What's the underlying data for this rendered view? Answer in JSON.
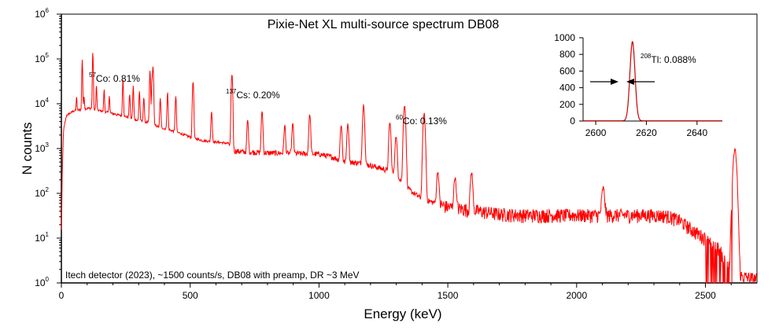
{
  "chart_data": [
    {
      "type": "line",
      "title": "Pixie-Net XL multi-source spectrum DB08",
      "xlabel": "Energy (keV)",
      "ylabel": "N counts",
      "yscale": "log",
      "xlim": [
        0,
        2700
      ],
      "ylim": [
        1,
        1000000
      ],
      "x_ticks": [
        0,
        500,
        1000,
        1500,
        2000,
        2500
      ],
      "y_ticks": [
        {
          "value": 1,
          "base": "10",
          "exp": "0"
        },
        {
          "value": 10,
          "base": "10",
          "exp": "1"
        },
        {
          "value": 100,
          "base": "10",
          "exp": "2"
        },
        {
          "value": 1000,
          "base": "10",
          "exp": "3"
        },
        {
          "value": 10000,
          "base": "10",
          "exp": "4"
        },
        {
          "value": 100000,
          "base": "10",
          "exp": "5"
        },
        {
          "value": 1000000,
          "base": "10",
          "exp": "6"
        }
      ],
      "line_color": "#ff0000",
      "continuum": [
        [
          0,
          14
        ],
        [
          3,
          200
        ],
        [
          8,
          2500
        ],
        [
          20,
          5500
        ],
        [
          50,
          7000
        ],
        [
          80,
          7500
        ],
        [
          110,
          8000
        ],
        [
          150,
          7000
        ],
        [
          200,
          6000
        ],
        [
          260,
          5000
        ],
        [
          300,
          4200
        ],
        [
          340,
          3800
        ],
        [
          380,
          3000
        ],
        [
          420,
          2600
        ],
        [
          460,
          2200
        ],
        [
          500,
          1800
        ],
        [
          550,
          1500
        ],
        [
          600,
          1400
        ],
        [
          650,
          1300
        ],
        [
          660,
          900
        ],
        [
          700,
          850
        ],
        [
          800,
          800
        ],
        [
          900,
          780
        ],
        [
          1000,
          750
        ],
        [
          1050,
          650
        ],
        [
          1100,
          500
        ],
        [
          1150,
          480
        ],
        [
          1200,
          420
        ],
        [
          1250,
          350
        ],
        [
          1300,
          260
        ],
        [
          1350,
          120
        ],
        [
          1400,
          75
        ],
        [
          1500,
          50
        ],
        [
          1600,
          42
        ],
        [
          1700,
          35
        ],
        [
          1800,
          33
        ],
        [
          1900,
          33
        ],
        [
          2000,
          33
        ],
        [
          2100,
          33
        ],
        [
          2200,
          33
        ],
        [
          2300,
          33
        ],
        [
          2350,
          32
        ],
        [
          2400,
          25
        ],
        [
          2450,
          15
        ],
        [
          2500,
          10
        ],
        [
          2550,
          6
        ],
        [
          2600,
          2
        ],
        [
          2614,
          2
        ],
        [
          2620,
          1.5
        ],
        [
          2700,
          1.2
        ]
      ],
      "peaks": [
        {
          "energy": 59,
          "height": 8000
        },
        {
          "energy": 81,
          "height": 90000
        },
        {
          "energy": 88,
          "height": 8000
        },
        {
          "energy": 122,
          "height": 130000
        },
        {
          "energy": 136,
          "height": 18000
        },
        {
          "energy": 166,
          "height": 14000
        },
        {
          "energy": 186,
          "height": 9000
        },
        {
          "energy": 239,
          "height": 30000
        },
        {
          "energy": 265,
          "height": 12000
        },
        {
          "energy": 279,
          "height": 20000
        },
        {
          "energy": 303,
          "height": 15000
        },
        {
          "energy": 320,
          "height": 10000
        },
        {
          "energy": 344,
          "height": 50000
        },
        {
          "energy": 352,
          "height": 30000
        },
        {
          "energy": 356,
          "height": 60000
        },
        {
          "energy": 384,
          "height": 10000
        },
        {
          "energy": 412,
          "height": 15000
        },
        {
          "energy": 444,
          "height": 12000
        },
        {
          "energy": 511,
          "height": 30000
        },
        {
          "energy": 583,
          "height": 5500
        },
        {
          "energy": 662,
          "height": 45000
        },
        {
          "energy": 723,
          "height": 3500
        },
        {
          "energy": 779,
          "height": 6000
        },
        {
          "energy": 867,
          "height": 2500
        },
        {
          "energy": 898,
          "height": 2800
        },
        {
          "energy": 964,
          "height": 5000
        },
        {
          "energy": 1086,
          "height": 2800
        },
        {
          "energy": 1112,
          "height": 3000
        },
        {
          "energy": 1173,
          "height": 9000
        },
        {
          "energy": 1275,
          "height": 3500
        },
        {
          "energy": 1299,
          "height": 1600
        },
        {
          "energy": 1332,
          "height": 9000
        },
        {
          "energy": 1408,
          "height": 6000
        },
        {
          "energy": 1461,
          "height": 250
        },
        {
          "energy": 1528,
          "height": 180
        },
        {
          "energy": 1592,
          "height": 250
        },
        {
          "energy": 2103,
          "height": 100
        },
        {
          "energy": 2614,
          "height": 900
        }
      ],
      "annotations": [
        {
          "sup": "57",
          "text": "Co: 0.81%"
        },
        {
          "sup": "137",
          "text": "Cs: 0.20%"
        },
        {
          "sup": "60",
          "text": "Co: 0.13%"
        }
      ],
      "footnote": "Itech detector (2023), ~1500 counts/s, DB08 with preamp, DR ~3 MeV"
    },
    {
      "type": "line",
      "title": "",
      "xlabel": "",
      "ylabel": "",
      "yscale": "linear",
      "xlim": [
        2595,
        2650
      ],
      "ylim": [
        0,
        1000
      ],
      "x_ticks": [
        2600,
        2620,
        2640
      ],
      "y_ticks": [
        0,
        200,
        400,
        600,
        800,
        1000
      ],
      "line_color": "#cc0000",
      "peak": {
        "center": 2614.5,
        "height": 950,
        "sigma": 1.0,
        "baseline": 3
      },
      "annotation": {
        "sup": "208",
        "text": "Tl: 0.088%"
      }
    }
  ]
}
